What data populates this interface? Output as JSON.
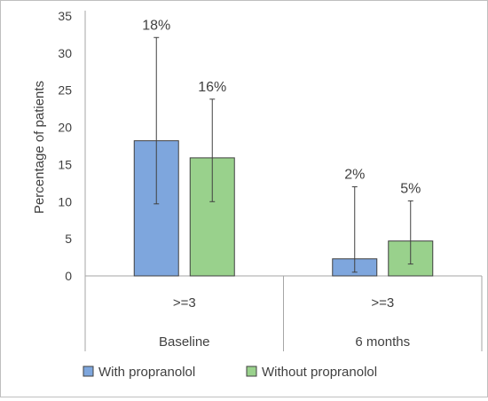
{
  "chart_data": {
    "type": "bar",
    "ylabel": "Percentage of patients",
    "ylim": [
      0,
      35
    ],
    "yticks": [
      0,
      5,
      10,
      15,
      20,
      25,
      30,
      35
    ],
    "grid": false,
    "legend_position": "bottom",
    "groups": [
      {
        "label": "Baseline",
        "subcategory": ">=3"
      },
      {
        "label": "6 months",
        "subcategory": ">=3"
      }
    ],
    "series": [
      {
        "name": "With propranolol",
        "color": "#7ea6dd",
        "values": [
          18.2,
          2.3
        ],
        "error_low": [
          9.7,
          0.5
        ],
        "error_high": [
          32.1,
          12.0
        ],
        "data_labels": [
          "18%",
          "2%"
        ]
      },
      {
        "name": "Without propranolol",
        "color": "#99d18c",
        "values": [
          15.9,
          4.7
        ],
        "error_low": [
          10.0,
          1.6
        ],
        "error_high": [
          23.8,
          10.1
        ],
        "data_labels": [
          "16%",
          "5%"
        ]
      }
    ]
  }
}
